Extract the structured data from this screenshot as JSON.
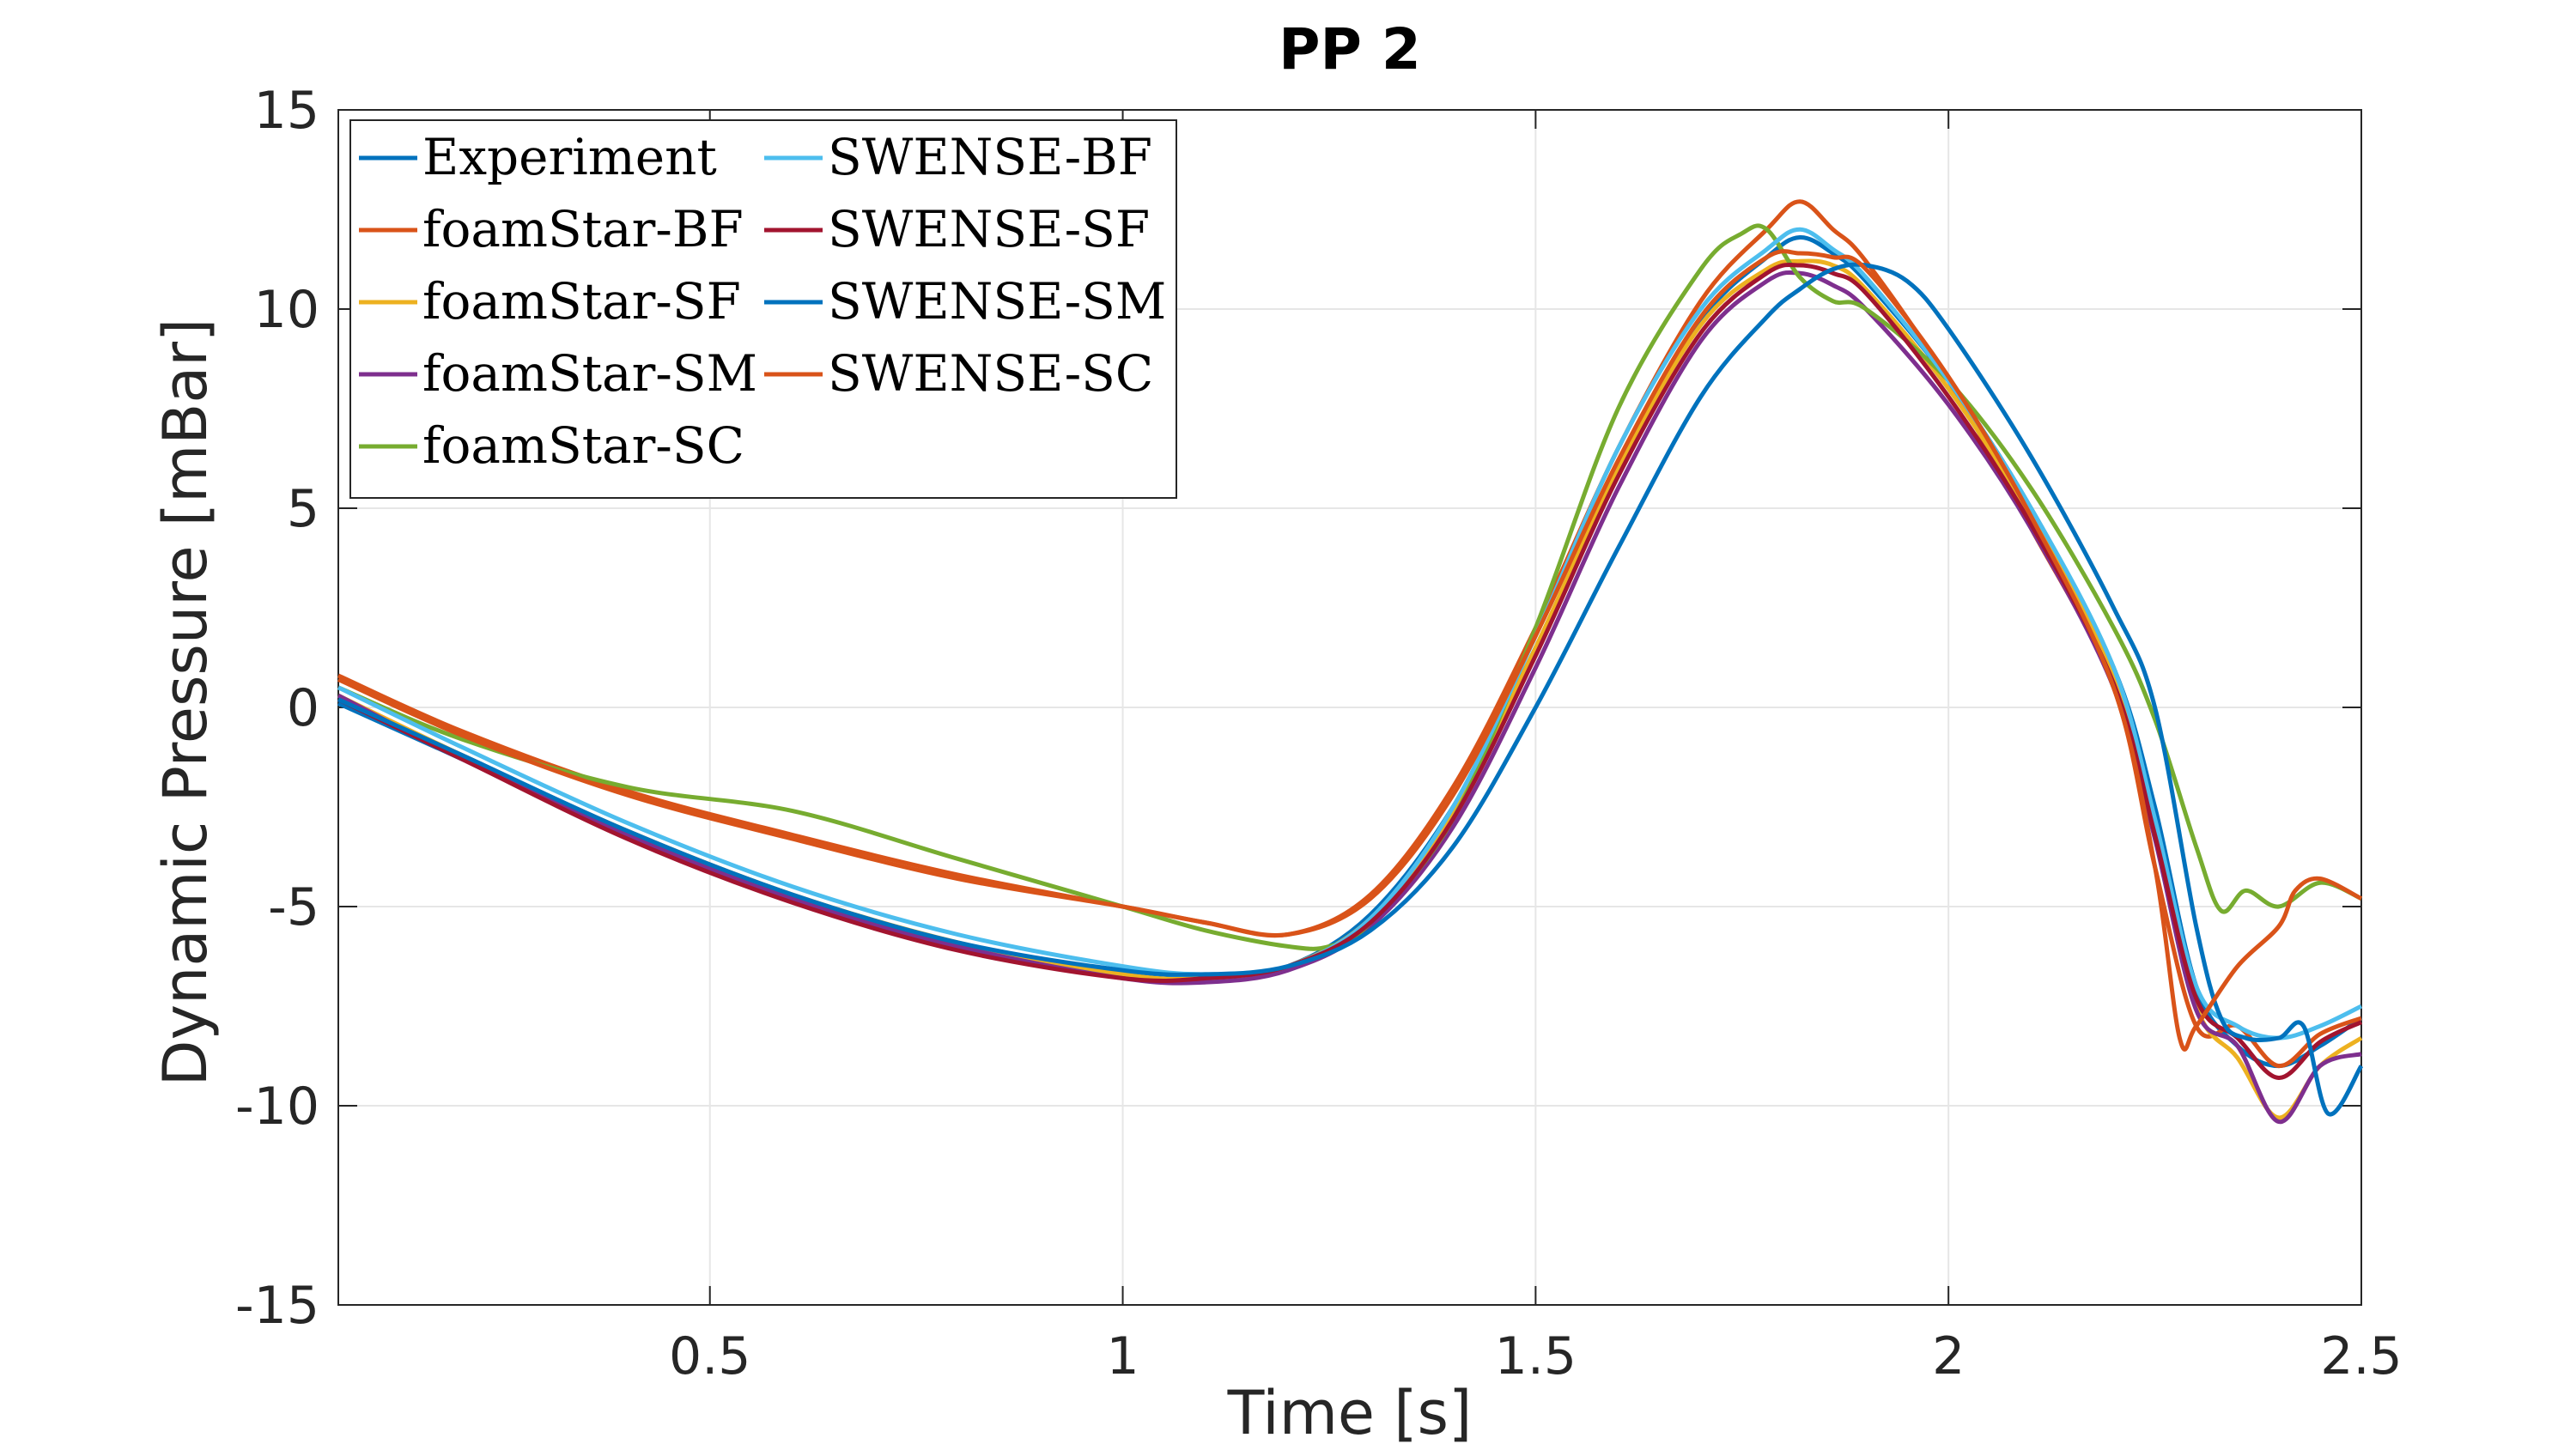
{
  "chart_data": {
    "type": "line",
    "title": "PP 2",
    "xlabel": "Time [s]",
    "ylabel": "Dynamic Pressure [mBar]",
    "xlim": [
      0.05,
      2.5
    ],
    "ylim": [
      -15,
      15
    ],
    "xticks": [
      0.5,
      1,
      1.5,
      2,
      2.5
    ],
    "xtick_labels": [
      "0.5",
      "1",
      "1.5",
      "2",
      "2.5"
    ],
    "yticks": [
      -15,
      -10,
      -5,
      0,
      5,
      10,
      15
    ],
    "ytick_labels": [
      "-15",
      "-10",
      "-5",
      "0",
      "5",
      "10",
      "15"
    ],
    "grid": true,
    "legend_position": "top-left",
    "legend_columns": 2,
    "series": [
      {
        "name": "Experiment",
        "color": "#0072BD",
        "x": [
          0.05,
          0.2,
          0.4,
          0.6,
          0.8,
          1.0,
          1.1,
          1.2,
          1.3,
          1.4,
          1.5,
          1.6,
          1.7,
          1.78,
          1.82,
          1.86,
          1.9,
          2.0,
          2.1,
          2.2,
          2.25,
          2.3,
          2.35,
          2.4,
          2.45,
          2.5
        ],
        "y": [
          0.1,
          -1.3,
          -3.2,
          -4.8,
          -6.0,
          -6.7,
          -6.8,
          -6.5,
          -5.2,
          -2.5,
          1.5,
          6.0,
          9.7,
          11.3,
          11.8,
          11.4,
          10.7,
          8.2,
          5.0,
          1.0,
          -2.5,
          -7.0,
          -8.5,
          -9.0,
          -8.5,
          -7.8
        ]
      },
      {
        "name": "foamStar-BF",
        "color": "#D95319",
        "x": [
          0.05,
          0.2,
          0.4,
          0.6,
          0.8,
          1.0,
          1.1,
          1.2,
          1.3,
          1.4,
          1.5,
          1.6,
          1.7,
          1.78,
          1.82,
          1.86,
          1.9,
          2.0,
          2.1,
          2.2,
          2.25,
          2.3,
          2.35,
          2.4,
          2.45,
          2.5
        ],
        "y": [
          0.8,
          -0.6,
          -2.1,
          -3.2,
          -4.2,
          -5.0,
          -5.4,
          -5.7,
          -4.7,
          -2.0,
          2.0,
          6.5,
          10.2,
          12.0,
          12.7,
          12.0,
          11.2,
          8.2,
          4.5,
          0.5,
          -4.0,
          -8.0,
          -8.0,
          -9.0,
          -8.2,
          -7.8
        ]
      },
      {
        "name": "foamStar-SF",
        "color": "#EDB120",
        "x": [
          0.05,
          0.2,
          0.4,
          0.6,
          0.8,
          1.0,
          1.1,
          1.2,
          1.3,
          1.4,
          1.5,
          1.6,
          1.7,
          1.78,
          1.82,
          1.86,
          1.9,
          2.0,
          2.1,
          2.2,
          2.25,
          2.3,
          2.35,
          2.4,
          2.45,
          2.5
        ],
        "y": [
          0.3,
          -1.2,
          -3.1,
          -4.7,
          -5.9,
          -6.7,
          -6.8,
          -6.5,
          -5.3,
          -2.6,
          1.5,
          6.0,
          9.6,
          11.0,
          11.2,
          11.1,
          10.5,
          8.0,
          4.8,
          0.8,
          -3.0,
          -7.5,
          -8.8,
          -10.3,
          -9.0,
          -8.3
        ]
      },
      {
        "name": "foamStar-SM",
        "color": "#7E2F8E",
        "x": [
          0.05,
          0.2,
          0.4,
          0.6,
          0.8,
          1.0,
          1.1,
          1.2,
          1.3,
          1.4,
          1.5,
          1.6,
          1.7,
          1.78,
          1.82,
          1.86,
          1.9,
          2.0,
          2.1,
          2.2,
          2.25,
          2.3,
          2.35,
          2.4,
          2.45,
          2.5
        ],
        "y": [
          0.3,
          -1.3,
          -3.2,
          -4.8,
          -6.0,
          -6.8,
          -6.9,
          -6.6,
          -5.5,
          -3.0,
          1.0,
          5.5,
          9.2,
          10.7,
          10.9,
          10.6,
          10.0,
          7.6,
          4.5,
          0.5,
          -3.3,
          -7.6,
          -8.5,
          -10.4,
          -9.0,
          -8.7
        ]
      },
      {
        "name": "foamStar-SC",
        "color": "#77AC30",
        "x": [
          0.05,
          0.2,
          0.4,
          0.6,
          0.8,
          1.0,
          1.1,
          1.2,
          1.25,
          1.3,
          1.4,
          1.5,
          1.6,
          1.7,
          1.75,
          1.78,
          1.82,
          1.86,
          1.9,
          2.0,
          2.1,
          2.2,
          2.25,
          2.3,
          2.33,
          2.36,
          2.4,
          2.45,
          2.5
        ],
        "y": [
          0.5,
          -0.8,
          -2.0,
          -2.6,
          -3.8,
          -5.0,
          -5.6,
          -6.0,
          -6.0,
          -5.4,
          -2.8,
          2.0,
          7.5,
          11.0,
          11.9,
          12.0,
          10.8,
          10.2,
          10.0,
          8.2,
          5.5,
          2.0,
          -0.3,
          -3.5,
          -5.1,
          -4.6,
          -5.0,
          -4.4,
          -4.8
        ]
      },
      {
        "name": "SWENSE-BF",
        "color": "#4DBEEE",
        "x": [
          0.05,
          0.2,
          0.4,
          0.6,
          0.8,
          1.0,
          1.1,
          1.2,
          1.3,
          1.4,
          1.5,
          1.6,
          1.7,
          1.78,
          1.82,
          1.86,
          1.9,
          2.0,
          2.1,
          2.2,
          2.25,
          2.3,
          2.35,
          2.4,
          2.45,
          2.5
        ],
        "y": [
          0.5,
          -1.0,
          -2.9,
          -4.5,
          -5.7,
          -6.5,
          -6.7,
          -6.5,
          -5.3,
          -2.5,
          1.8,
          6.5,
          10.0,
          11.5,
          12.0,
          11.5,
          10.8,
          8.2,
          5.0,
          1.0,
          -2.8,
          -7.0,
          -8.0,
          -8.3,
          -8.0,
          -7.5
        ]
      },
      {
        "name": "SWENSE-SF",
        "color": "#A2142F",
        "x": [
          0.05,
          0.2,
          0.4,
          0.6,
          0.8,
          1.0,
          1.1,
          1.2,
          1.3,
          1.4,
          1.5,
          1.6,
          1.7,
          1.78,
          1.82,
          1.86,
          1.9,
          2.0,
          2.1,
          2.2,
          2.25,
          2.3,
          2.35,
          2.4,
          2.45,
          2.5
        ],
        "y": [
          0.2,
          -1.3,
          -3.3,
          -4.9,
          -6.1,
          -6.8,
          -6.8,
          -6.5,
          -5.4,
          -2.8,
          1.3,
          5.8,
          9.4,
          10.9,
          11.1,
          10.9,
          10.4,
          7.8,
          4.6,
          0.6,
          -3.2,
          -7.3,
          -8.3,
          -9.3,
          -8.4,
          -7.9
        ]
      },
      {
        "name": "SWENSE-SM",
        "color": "#0072BD",
        "x": [
          0.05,
          0.2,
          0.4,
          0.6,
          0.8,
          1.0,
          1.1,
          1.2,
          1.3,
          1.4,
          1.5,
          1.6,
          1.7,
          1.78,
          1.82,
          1.86,
          1.9,
          1.95,
          2.0,
          2.1,
          2.2,
          2.25,
          2.3,
          2.33,
          2.36,
          2.4,
          2.43,
          2.46,
          2.5
        ],
        "y": [
          0.2,
          -1.2,
          -3.1,
          -4.7,
          -5.9,
          -6.6,
          -6.7,
          -6.5,
          -5.6,
          -3.5,
          0.0,
          4.0,
          7.8,
          9.8,
          10.5,
          11.0,
          11.1,
          10.7,
          9.5,
          6.3,
          2.5,
          0.0,
          -5.5,
          -7.8,
          -8.3,
          -8.3,
          -8.0,
          -10.2,
          -9.0
        ]
      },
      {
        "name": "SWENSE-SC",
        "color": "#D95319",
        "x": [
          0.05,
          0.2,
          0.4,
          0.6,
          0.8,
          1.0,
          1.1,
          1.2,
          1.3,
          1.4,
          1.5,
          1.6,
          1.7,
          1.78,
          1.82,
          1.86,
          1.9,
          2.0,
          2.1,
          2.2,
          2.25,
          2.28,
          2.3,
          2.35,
          2.4,
          2.42,
          2.45,
          2.5
        ],
        "y": [
          0.7,
          -0.7,
          -2.2,
          -3.3,
          -4.3,
          -5.0,
          -5.4,
          -5.7,
          -4.8,
          -2.2,
          1.8,
          6.2,
          9.8,
          11.3,
          11.4,
          11.3,
          11.0,
          8.3,
          4.8,
          0.5,
          -4.0,
          -8.3,
          -8.0,
          -6.5,
          -5.5,
          -4.6,
          -4.3,
          -4.8
        ]
      }
    ]
  }
}
